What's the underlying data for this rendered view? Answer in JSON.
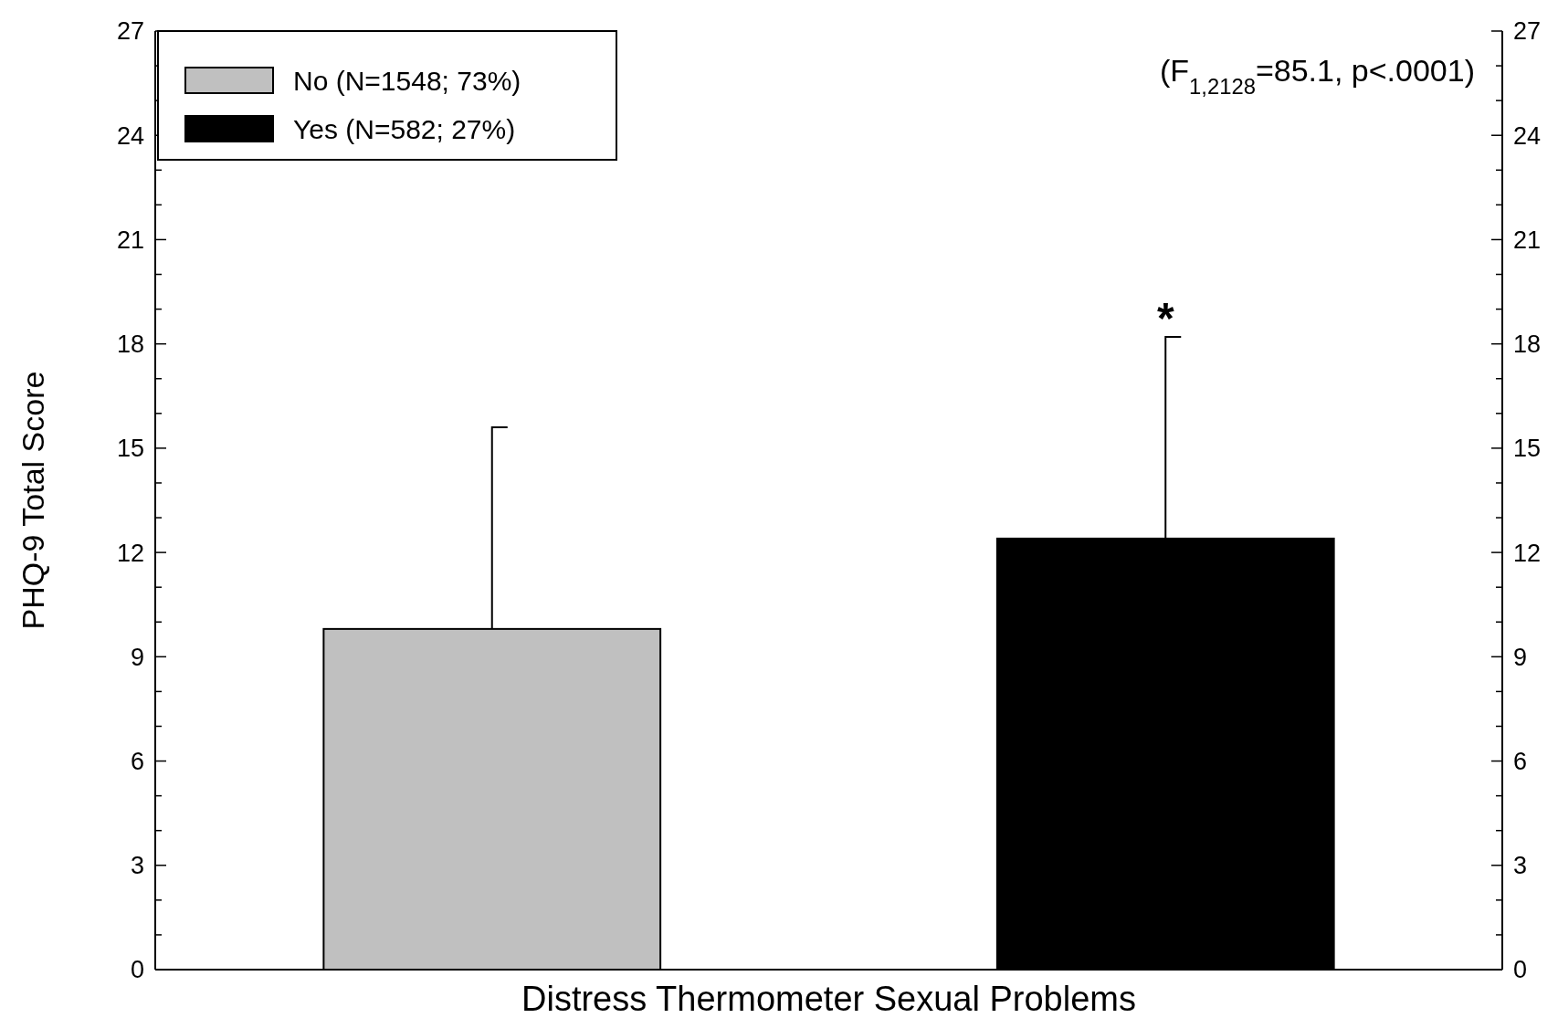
{
  "chart_data": {
    "type": "bar",
    "xlabel": "Distress Thermometer Sexual Problems",
    "ylabel": "PHQ-9 Total Score",
    "categories": [
      null,
      null
    ],
    "series": [
      {
        "name": "No (N=1548; 73%)",
        "color": "#c0c0c0",
        "values": [
          9.8,
          null
        ],
        "errors": [
          5.8,
          null
        ]
      },
      {
        "name": "Yes (N=582; 27%)",
        "color": "#000000",
        "values": [
          null,
          12.4
        ],
        "errors": [
          null,
          5.8
        ]
      }
    ],
    "ylim": [
      0,
      27
    ],
    "yticks": [
      0,
      {
        "value": 1,
        "label": null
      },
      {
        "value": 2,
        "label": null
      },
      3,
      {
        "value": 4,
        "label": null
      },
      {
        "value": 5,
        "label": null
      },
      6,
      {
        "value": 7,
        "label": null
      },
      {
        "value": 8,
        "label": null
      },
      9,
      {
        "value": 10,
        "label": null
      },
      {
        "value": 11,
        "label": null
      },
      12,
      {
        "value": 13,
        "label": null
      },
      {
        "value": 14,
        "label": null
      },
      15,
      {
        "value": 16,
        "label": null
      },
      {
        "value": 17,
        "label": null
      },
      18,
      {
        "value": 19,
        "label": null
      },
      {
        "value": 20,
        "label": null
      },
      21,
      {
        "value": 22,
        "label": null
      },
      {
        "value": 23,
        "label": null
      },
      24,
      {
        "value": 25,
        "label": null
      },
      {
        "value": 26,
        "label": null
      },
      27
    ],
    "y2lim": [
      0,
      27
    ],
    "y2ticks": [
      0,
      {
        "value": 1,
        "label": null
      },
      {
        "value": 2,
        "label": null
      },
      3,
      {
        "value": 4,
        "label": null
      },
      {
        "value": 5,
        "label": null
      },
      6,
      {
        "value": 7,
        "label": null
      },
      {
        "value": 8,
        "label": null
      },
      9,
      {
        "value": 10,
        "label": null
      },
      {
        "value": 11,
        "label": null
      },
      12,
      {
        "value": 13,
        "label": null
      },
      {
        "value": 14,
        "label": null
      },
      15,
      {
        "value": 16,
        "label": null
      },
      {
        "value": 17,
        "label": null
      },
      18,
      {
        "value": 19,
        "label": null
      },
      {
        "value": 20,
        "label": null
      },
      21,
      {
        "value": 22,
        "label": null
      },
      {
        "value": 23,
        "label": null
      },
      24,
      {
        "value": 25,
        "label": null
      },
      {
        "value": 26,
        "label": null
      },
      27
    ],
    "legend": "top left",
    "annotations": [
      "(F$_{1,2128}$=85.1, p<.0001)",
      {
        "text": "*",
        "y": 18.2
      }
    ]
  }
}
